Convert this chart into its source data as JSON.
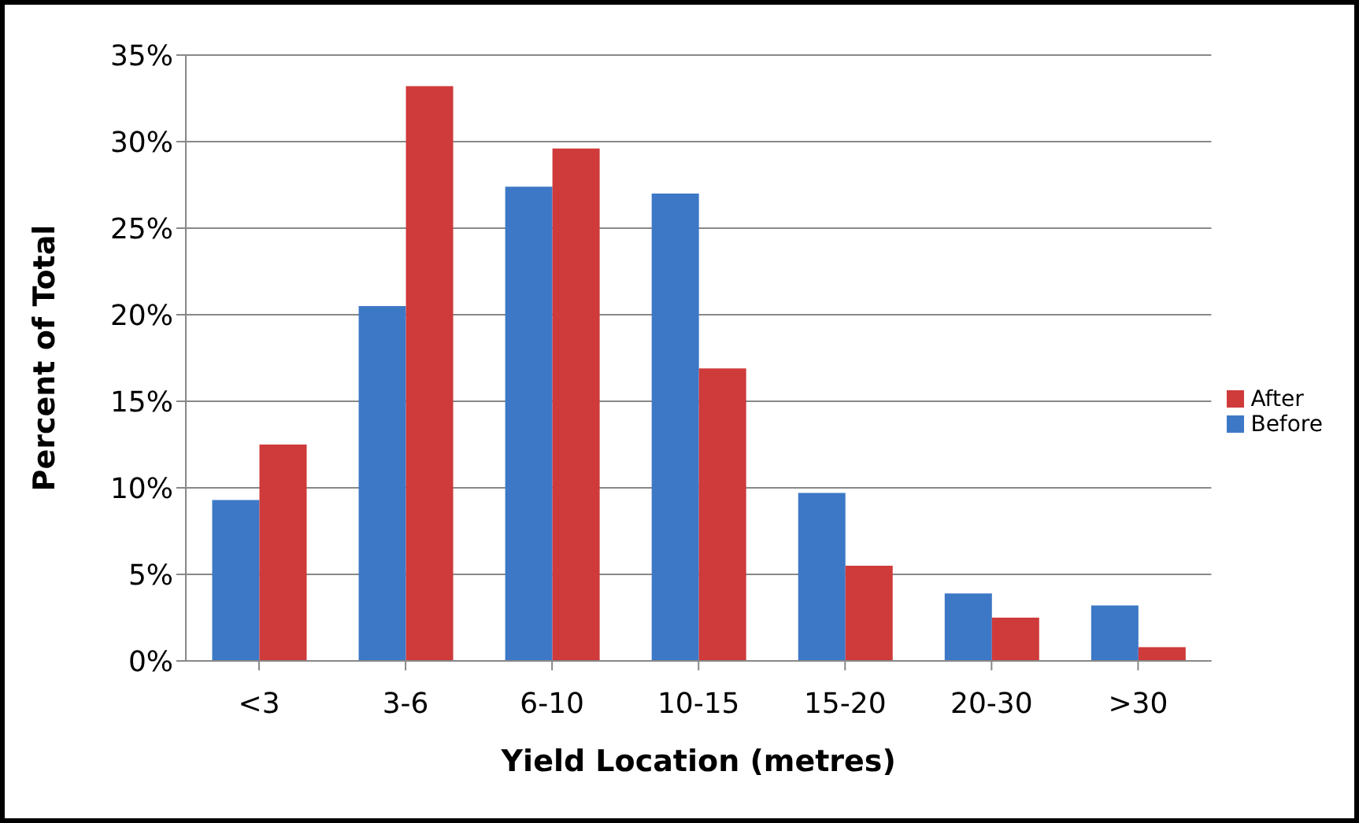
{
  "chart_data": {
    "type": "bar",
    "xlabel": "Yield Location (metres)",
    "ylabel": "Percent of Total",
    "categories": [
      "<3",
      "3-6",
      "6-10",
      "10-15",
      "15-20",
      "20-30",
      ">30"
    ],
    "series": [
      {
        "name": "Before",
        "color": "#3d78c6",
        "values": [
          9.3,
          20.5,
          27.4,
          27.0,
          9.7,
          3.9,
          3.2
        ]
      },
      {
        "name": "After",
        "color": "#cf3a3a",
        "values": [
          12.5,
          33.2,
          29.6,
          16.9,
          5.5,
          2.5,
          0.8
        ]
      }
    ],
    "ylim": [
      0,
      35
    ],
    "yticks": [
      {
        "value": 0,
        "label": "0%"
      },
      {
        "value": 5,
        "label": "5%"
      },
      {
        "value": 10,
        "label": "10%"
      },
      {
        "value": 15,
        "label": "15%"
      },
      {
        "value": 20,
        "label": "20%"
      },
      {
        "value": 25,
        "label": "25%"
      },
      {
        "value": 30,
        "label": "30%"
      },
      {
        "value": 35,
        "label": "35%"
      }
    ],
    "grid": "y",
    "legend": "right"
  }
}
